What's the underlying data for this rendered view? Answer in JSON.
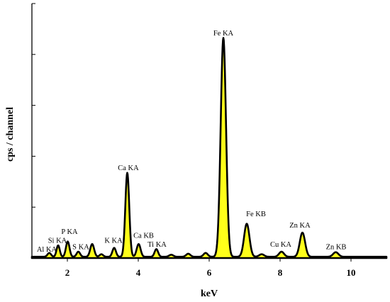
{
  "chart_data": {
    "type": "area",
    "title": "",
    "xlabel": "keV",
    "ylabel": "cps / channel",
    "xlim": [
      1.0,
      11.0
    ],
    "ylim": [
      0,
      1.0
    ],
    "x_ticks": [
      {
        "value": 2,
        "label": "2"
      },
      {
        "value": 4,
        "label": "4"
      },
      {
        "value": 6,
        "label": "6"
      },
      {
        "value": 8,
        "label": "8"
      },
      {
        "value": 10,
        "label": "10"
      }
    ],
    "y_ticks": [
      0.2,
      0.4,
      0.6,
      0.8,
      1.0
    ],
    "grid": false,
    "baseline": 0.005,
    "peaks": [
      {
        "x": 1.49,
        "height": 0.015,
        "width": 0.05
      },
      {
        "x": 1.74,
        "height": 0.045,
        "width": 0.045
      },
      {
        "x": 2.01,
        "height": 0.06,
        "width": 0.05
      },
      {
        "x": 2.31,
        "height": 0.02,
        "width": 0.05
      },
      {
        "x": 2.7,
        "height": 0.05,
        "width": 0.055
      },
      {
        "x": 2.96,
        "height": 0.01,
        "width": 0.05
      },
      {
        "x": 3.32,
        "height": 0.035,
        "width": 0.05
      },
      {
        "x": 3.69,
        "height": 0.33,
        "width": 0.055
      },
      {
        "x": 4.01,
        "height": 0.05,
        "width": 0.055
      },
      {
        "x": 4.51,
        "height": 0.03,
        "width": 0.05
      },
      {
        "x": 4.93,
        "height": 0.008,
        "width": 0.06
      },
      {
        "x": 5.41,
        "height": 0.012,
        "width": 0.06
      },
      {
        "x": 5.9,
        "height": 0.015,
        "width": 0.06
      },
      {
        "x": 6.4,
        "height": 0.86,
        "width": 0.075
      },
      {
        "x": 7.06,
        "height": 0.13,
        "width": 0.075
      },
      {
        "x": 7.48,
        "height": 0.01,
        "width": 0.07
      },
      {
        "x": 8.04,
        "height": 0.02,
        "width": 0.07
      },
      {
        "x": 8.63,
        "height": 0.095,
        "width": 0.075
      },
      {
        "x": 9.57,
        "height": 0.018,
        "width": 0.075
      }
    ],
    "annotations": [
      {
        "text": "Al KA",
        "x": 1.42,
        "y": 0.025
      },
      {
        "text": "Si KA",
        "x": 1.72,
        "y": 0.06
      },
      {
        "text": "P KA",
        "x": 2.06,
        "y": 0.095
      },
      {
        "text": "S KA",
        "x": 2.38,
        "y": 0.035
      },
      {
        "text": "K KA",
        "x": 3.3,
        "y": 0.06
      },
      {
        "text": "Ca KA",
        "x": 3.72,
        "y": 0.345
      },
      {
        "text": "Ca KB",
        "x": 4.15,
        "y": 0.08
      },
      {
        "text": "Ti KA",
        "x": 4.53,
        "y": 0.045
      },
      {
        "text": "Fe KA",
        "x": 6.4,
        "y": 0.875
      },
      {
        "text": "Fe KB",
        "x": 7.32,
        "y": 0.165
      },
      {
        "text": "Cu KA",
        "x": 8.02,
        "y": 0.045
      },
      {
        "text": "Zn KA",
        "x": 8.56,
        "y": 0.12
      },
      {
        "text": "Zn KB",
        "x": 9.58,
        "y": 0.035
      }
    ]
  },
  "colors": {
    "fill": "#ffff1a",
    "stroke": "#000000"
  }
}
